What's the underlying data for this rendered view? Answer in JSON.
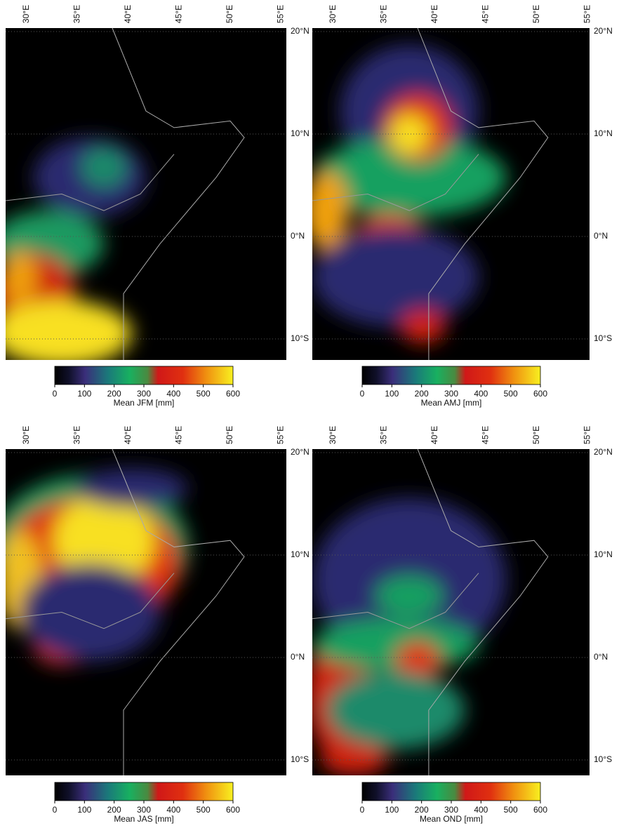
{
  "longitude_labels": [
    "30°E",
    "35°E",
    "40°E",
    "45°E",
    "50°E",
    "55°E"
  ],
  "latitude_labels": [
    "20°N",
    "10°N",
    "0°N",
    "10°S"
  ],
  "colorbar": {
    "range": [
      0,
      600
    ],
    "ticks": [
      0,
      100,
      200,
      300,
      400,
      500,
      600
    ]
  },
  "panels": [
    {
      "colorbar_label": "Mean JFM [mm]"
    },
    {
      "colorbar_label": "Mean AMJ [mm]"
    },
    {
      "colorbar_label": "Mean JAS [mm]"
    },
    {
      "colorbar_label": "Mean OND [mm]"
    }
  ]
}
